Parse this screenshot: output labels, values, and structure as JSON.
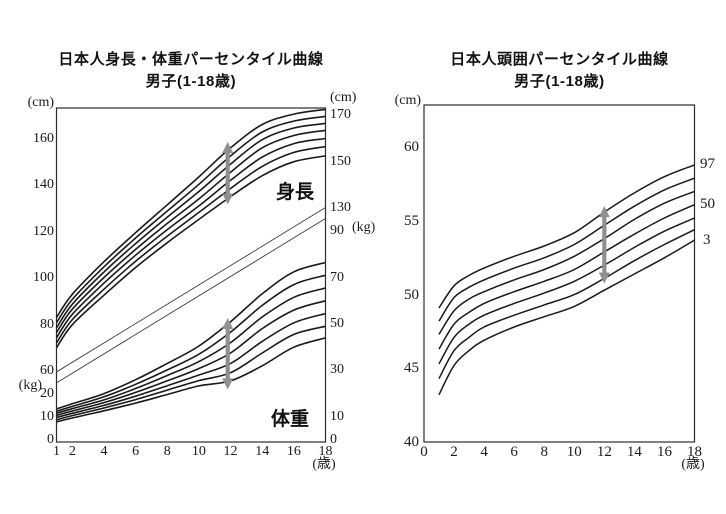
{
  "colors": {
    "curve": "#191919",
    "axis": "#2b2b2b",
    "divider": "#3d3d3d",
    "arrow": "#8f8f8f",
    "background": "#ffffff",
    "text": "#1a1a1a"
  },
  "chart_data": [
    {
      "type": "line",
      "title": "日本人身長・体重パーセンタイル曲線",
      "subtitle": "男子(1-18歳)",
      "xlabel": "(歳)",
      "x_ticks": [
        1,
        2,
        4,
        6,
        8,
        10,
        12,
        14,
        16,
        18
      ],
      "x_range": [
        1,
        18
      ],
      "axes": {
        "left_cm_unit": "(cm)",
        "left_cm_ticks": [
          160,
          140,
          120,
          100,
          80,
          60
        ],
        "left_kg_unit": "(kg)",
        "left_kg_ticks": [
          20,
          10,
          0
        ],
        "right_cm_unit": "(cm)",
        "right_cm_ticks": [
          170,
          150,
          130
        ],
        "right_kg_unit": "(kg)",
        "right_kg_ticks": [
          90,
          70,
          50,
          30,
          10,
          0
        ],
        "cm_axis_range": [
          60,
          173.6
        ],
        "kg_axis_range": [
          0,
          95
        ],
        "grid": false
      },
      "height_label": "身長",
      "weight_label": "体重",
      "ages": [
        1,
        2,
        4,
        6,
        8,
        10,
        12,
        14,
        16,
        18
      ],
      "height_series": [
        {
          "percentile": 97,
          "values": [
            83.0,
            93.0,
            107.0,
            119.5,
            131.5,
            143.5,
            156.0,
            166.0,
            170.5,
            172.5
          ]
        },
        {
          "percentile": 90,
          "values": [
            80.8,
            90.8,
            104.8,
            117.2,
            128.8,
            140.3,
            152.5,
            162.8,
            167.5,
            169.5
          ]
        },
        {
          "percentile": 75,
          "values": [
            78.6,
            88.7,
            102.6,
            114.8,
            126.2,
            137.2,
            149.0,
            159.5,
            164.5,
            166.5
          ]
        },
        {
          "percentile": 50,
          "values": [
            76.5,
            86.6,
            100.2,
            112.3,
            123.5,
            134.0,
            145.5,
            156.0,
            161.3,
            163.5
          ]
        },
        {
          "percentile": 25,
          "values": [
            74.3,
            84.4,
            97.8,
            109.8,
            120.8,
            131.0,
            142.0,
            152.0,
            157.8,
            160.0
          ]
        },
        {
          "percentile": 10,
          "values": [
            72.1,
            82.1,
            95.2,
            107.2,
            118.0,
            128.2,
            138.5,
            148.0,
            154.0,
            156.5
          ]
        },
        {
          "percentile": 3,
          "values": [
            70.0,
            79.9,
            92.6,
            104.5,
            115.2,
            125.2,
            135.0,
            144.0,
            150.0,
            152.5
          ]
        }
      ],
      "weight_series": [
        {
          "percentile": 97,
          "values": [
            13.4,
            15.6,
            20.0,
            26.0,
            33.0,
            40.5,
            51.0,
            63.0,
            72.5,
            76.5
          ]
        },
        {
          "percentile": 90,
          "values": [
            12.4,
            14.5,
            18.6,
            24.0,
            30.2,
            37.0,
            46.5,
            58.0,
            67.0,
            71.0
          ]
        },
        {
          "percentile": 75,
          "values": [
            11.5,
            13.5,
            17.3,
            22.2,
            27.8,
            33.8,
            42.0,
            53.0,
            61.5,
            65.5
          ]
        },
        {
          "percentile": 50,
          "values": [
            10.6,
            12.5,
            16.1,
            20.5,
            25.5,
            30.8,
            37.5,
            48.0,
            56.0,
            60.0
          ]
        },
        {
          "percentile": 25,
          "values": [
            9.7,
            11.5,
            14.9,
            18.9,
            23.4,
            28.0,
            33.0,
            42.5,
            50.5,
            54.5
          ]
        },
        {
          "percentile": 10,
          "values": [
            8.7,
            10.5,
            13.8,
            17.4,
            21.5,
            25.6,
            29.0,
            37.5,
            45.5,
            49.0
          ]
        },
        {
          "percentile": 3,
          "values": [
            7.8,
            9.5,
            12.6,
            15.9,
            19.6,
            23.3,
            25.5,
            32.0,
            40.0,
            44.0
          ]
        }
      ],
      "divider_lines": [
        {
          "ages": [
            1,
            18
          ],
          "cm": [
            59.6,
            130.3
          ]
        },
        {
          "ages": [
            1,
            18
          ],
          "cm": [
            54.9,
            125.6
          ]
        }
      ],
      "arrows": [
        {
          "axis": "cm",
          "age": 11.82,
          "low": 131.6,
          "high": 158.5
        },
        {
          "axis": "kg",
          "age": 11.82,
          "low": 21.8,
          "high": 52.6
        }
      ]
    },
    {
      "type": "line",
      "title": "日本人頭囲パーセンタイル曲線",
      "subtitle": "男子(1-18歳)",
      "xlabel": "(歳)",
      "x_ticks": [
        0,
        2,
        4,
        6,
        8,
        10,
        12,
        14,
        16,
        18
      ],
      "x_range": [
        0,
        18
      ],
      "axes": {
        "left_cm_unit": "(cm)",
        "left_cm_ticks": [
          60,
          55,
          50,
          45,
          40
        ],
        "cm_axis_range": [
          40,
          62.9
        ],
        "grid": false
      },
      "right_percentile_labels": [
        "97",
        "50",
        "3"
      ],
      "ages": [
        1,
        2,
        3,
        4,
        6,
        8,
        10,
        12,
        14,
        16,
        18
      ],
      "series": [
        {
          "percentile": 97,
          "values": [
            49.1,
            50.6,
            51.3,
            51.8,
            52.6,
            53.3,
            54.2,
            55.6,
            56.9,
            58.0,
            58.8
          ]
        },
        {
          "percentile": 90,
          "values": [
            48.2,
            49.8,
            50.5,
            51.0,
            51.8,
            52.5,
            53.4,
            54.7,
            56.0,
            57.1,
            57.9
          ]
        },
        {
          "percentile": 75,
          "values": [
            47.3,
            48.9,
            49.7,
            50.2,
            51.0,
            51.7,
            52.6,
            53.8,
            55.1,
            56.2,
            57.0
          ]
        },
        {
          "percentile": 50,
          "values": [
            46.3,
            48.0,
            48.8,
            49.4,
            50.2,
            50.9,
            51.7,
            52.9,
            54.1,
            55.2,
            56.1
          ]
        },
        {
          "percentile": 25,
          "values": [
            45.3,
            47.1,
            48.0,
            48.6,
            49.4,
            50.1,
            50.9,
            52.0,
            53.2,
            54.3,
            55.2
          ]
        },
        {
          "percentile": 10,
          "values": [
            44.3,
            46.2,
            47.1,
            47.8,
            48.6,
            49.3,
            50.0,
            51.1,
            52.3,
            53.4,
            54.4
          ]
        },
        {
          "percentile": 3,
          "values": [
            43.2,
            45.2,
            46.2,
            46.9,
            47.8,
            48.5,
            49.2,
            50.3,
            51.4,
            52.5,
            53.7
          ]
        }
      ],
      "arrows": [
        {
          "axis": "cm",
          "age": 12,
          "low": 50.75,
          "high": 56.0
        }
      ]
    }
  ]
}
